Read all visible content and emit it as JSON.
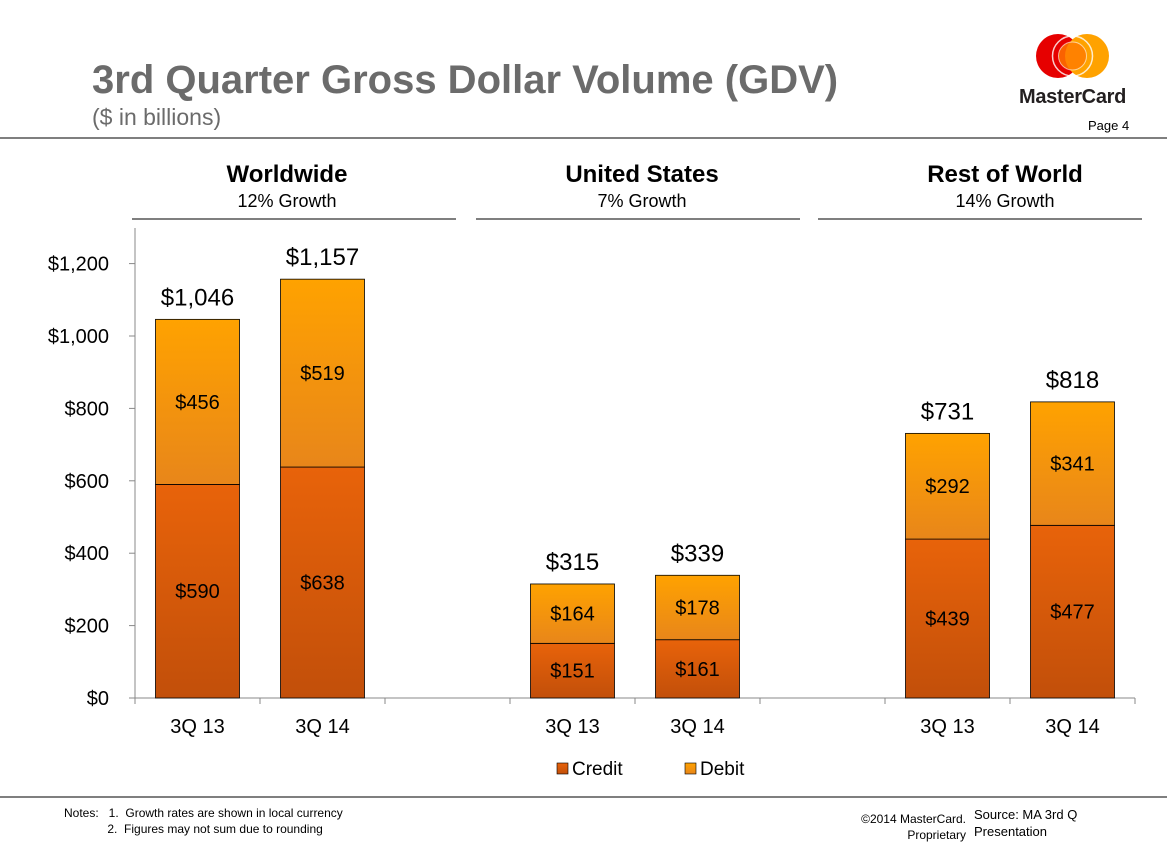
{
  "header": {
    "title": "3rd Quarter Gross Dollar Volume (GDV)",
    "subtitle": "($ in billions)",
    "page": "Page 4",
    "brand": "MasterCard"
  },
  "groups": [
    {
      "title": "Worldwide",
      "growth": "12% Growth"
    },
    {
      "title": "United States",
      "growth": "7% Growth"
    },
    {
      "title": "Rest of World",
      "growth": "14% Growth"
    }
  ],
  "chart_data": {
    "type": "bar",
    "stacked": true,
    "categories": [
      "3Q 13",
      "3Q 14",
      "3Q 13",
      "3Q 14",
      "3Q 13",
      "3Q 14"
    ],
    "series": [
      {
        "name": "Credit",
        "values": [
          590,
          638,
          151,
          161,
          439,
          477
        ],
        "labels": [
          "$590",
          "$638",
          "$151",
          "$161",
          "$439",
          "$477"
        ]
      },
      {
        "name": "Debit",
        "values": [
          456,
          519,
          164,
          178,
          292,
          341
        ],
        "labels": [
          "$456",
          "$519",
          "$164",
          "$178",
          "$292",
          "$341"
        ]
      }
    ],
    "totals": [
      1046,
      1157,
      315,
      339,
      731,
      818
    ],
    "total_labels": [
      "$1,046",
      "$1,157",
      "$315",
      "$339",
      "$731",
      "$818"
    ],
    "yticks": [
      0,
      200,
      400,
      600,
      800,
      1000,
      1200
    ],
    "ytick_labels": [
      "$0",
      "$200",
      "$400",
      "$600",
      "$800",
      "$1,000",
      "$1,200"
    ],
    "ylim": [
      0,
      1300
    ],
    "legend_position": "bottom-center",
    "grid": false
  },
  "colors": {
    "credit_top": "#e8630a",
    "credit_bottom": "#c24f0a",
    "debit_top": "#ffa200",
    "debit_bottom": "#e8861a",
    "rule": "#7f7f7f",
    "title": "#6b6b6b"
  },
  "footer": {
    "notes": "Notes:   1.  Growth rates are shown in local currency\n             2.  Figures may not sum due to rounding",
    "copyright_line1": "©2014 MasterCard.",
    "copyright_line2": "Proprietary",
    "source_line1": "Source: MA 3rd Q",
    "source_line2": "Presentation"
  }
}
